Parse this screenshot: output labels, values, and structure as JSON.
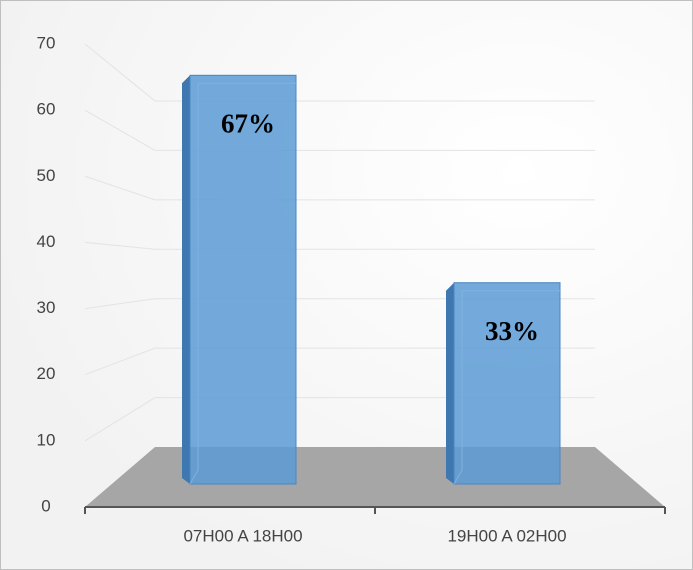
{
  "chart_data": {
    "type": "bar",
    "categories": [
      "07H00 A 18H00",
      "19H00 A 02H00"
    ],
    "values": [
      67,
      33
    ],
    "value_labels": [
      "67%",
      "33%"
    ],
    "color": "#5b9bd5",
    "ylim": [
      0,
      70
    ],
    "yticks": [
      0,
      10,
      20,
      30,
      40,
      50,
      60,
      70
    ],
    "grid": true
  }
}
